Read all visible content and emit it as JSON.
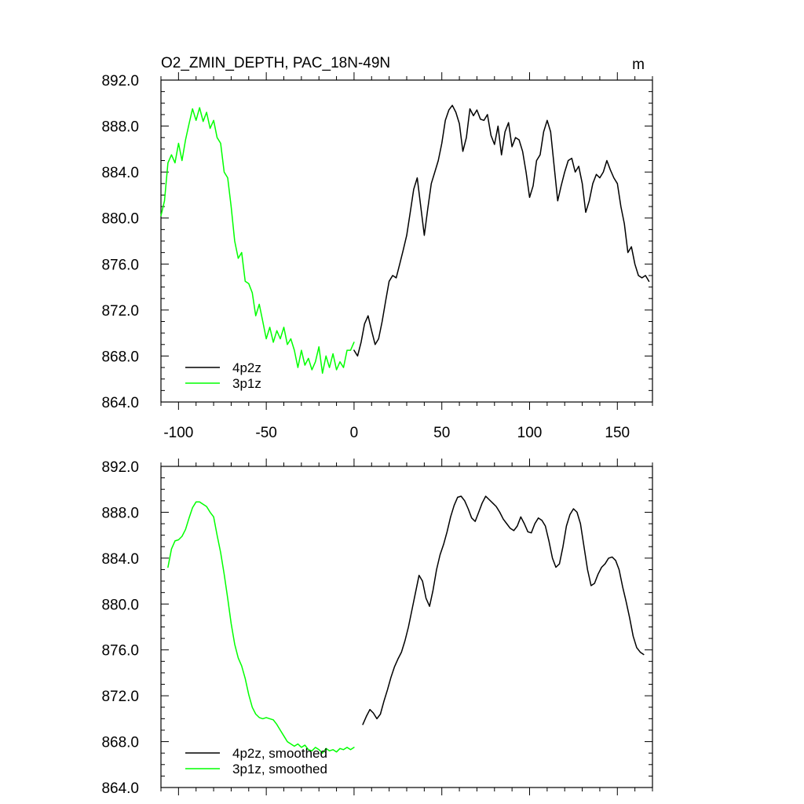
{
  "chart_data": [
    {
      "type": "line",
      "title": "O2_ZMIN_DEPTH, PAC_18N-49N",
      "units": "m",
      "xlim": [
        -110,
        170
      ],
      "ylim": [
        864,
        892
      ],
      "x_ticks": [
        -100,
        -50,
        0,
        50,
        100,
        150
      ],
      "x_tick_labels": [
        "-100",
        "-50",
        "0",
        "50",
        "100",
        "150"
      ],
      "y_ticks": [
        864,
        868,
        872,
        876,
        880,
        884,
        888,
        892
      ],
      "y_tick_labels": [
        "864.0",
        "868.0",
        "872.0",
        "876.0",
        "880.0",
        "884.0",
        "888.0",
        "892.0"
      ],
      "legend": "bottom-left",
      "series": [
        {
          "name": "4p2z",
          "color": "#000000",
          "x": [
            0,
            2,
            4,
            6,
            8,
            10,
            12,
            14,
            16,
            18,
            20,
            22,
            24,
            26,
            28,
            30,
            32,
            34,
            36,
            38,
            40,
            42,
            44,
            46,
            48,
            50,
            52,
            54,
            56,
            58,
            60,
            62,
            64,
            66,
            68,
            70,
            72,
            74,
            76,
            78,
            80,
            82,
            84,
            86,
            88,
            90,
            92,
            94,
            96,
            98,
            100,
            102,
            104,
            106,
            108,
            110,
            112,
            114,
            116,
            118,
            120,
            122,
            124,
            126,
            128,
            130,
            132,
            134,
            136,
            138,
            140,
            142,
            144,
            146,
            148,
            150,
            152,
            154,
            156,
            158,
            160,
            162,
            164,
            166,
            168
          ],
          "y": [
            868.5,
            868.0,
            869.2,
            870.8,
            871.5,
            870.2,
            869.0,
            869.5,
            871.0,
            872.8,
            874.5,
            875.0,
            874.8,
            876.0,
            877.2,
            878.5,
            880.5,
            882.5,
            883.5,
            881.0,
            878.5,
            880.8,
            883.0,
            884.0,
            885.0,
            886.5,
            888.5,
            889.4,
            889.8,
            889.2,
            888.2,
            885.8,
            887.0,
            889.5,
            888.9,
            889.4,
            888.6,
            888.5,
            889.0,
            887.2,
            886.4,
            888.0,
            885.5,
            887.5,
            888.3,
            886.2,
            887.0,
            886.8,
            885.8,
            884.0,
            881.8,
            882.8,
            885.0,
            885.5,
            887.5,
            888.5,
            887.5,
            884.5,
            881.5,
            882.8,
            884.0,
            885.0,
            885.2,
            884.0,
            884.5,
            883.0,
            880.5,
            881.5,
            883.0,
            883.8,
            883.5,
            884.0,
            885.0,
            884.2,
            883.5,
            883.0,
            881.0,
            879.5,
            877.0,
            877.5,
            876.0,
            875.0,
            874.8,
            875.0,
            874.5
          ]
        },
        {
          "name": "3p1z",
          "color": "#00ff00",
          "x": [
            -110,
            -108,
            -106,
            -104,
            -102,
            -100,
            -98,
            -96,
            -94,
            -92,
            -90,
            -88,
            -86,
            -84,
            -82,
            -80,
            -78,
            -76,
            -74,
            -72,
            -70,
            -68,
            -66,
            -64,
            -62,
            -60,
            -58,
            -56,
            -54,
            -52,
            -50,
            -48,
            -46,
            -44,
            -42,
            -40,
            -38,
            -36,
            -34,
            -32,
            -30,
            -28,
            -26,
            -24,
            -22,
            -20,
            -18,
            -16,
            -14,
            -12,
            -10,
            -8,
            -6,
            -4,
            -2,
            0
          ],
          "y": [
            880.2,
            881.5,
            884.8,
            885.5,
            884.8,
            886.5,
            885.0,
            886.8,
            888.2,
            889.5,
            888.5,
            889.6,
            888.4,
            889.2,
            887.8,
            888.5,
            887.0,
            886.5,
            884.0,
            883.5,
            881.0,
            878.0,
            876.5,
            877.0,
            874.5,
            874.3,
            873.5,
            871.5,
            872.5,
            871.0,
            869.5,
            870.5,
            869.2,
            870.2,
            869.5,
            870.5,
            869.0,
            869.5,
            868.5,
            867.0,
            868.5,
            867.2,
            867.8,
            866.8,
            867.5,
            868.8,
            866.5,
            868.0,
            867.0,
            868.2,
            866.8,
            867.5,
            867.0,
            868.5,
            868.5,
            869.2
          ]
        }
      ]
    },
    {
      "type": "line",
      "title": "",
      "xlim": [
        -110,
        170
      ],
      "ylim": [
        864,
        892
      ],
      "x_ticks": [
        -100,
        -50,
        0,
        50,
        100,
        150
      ],
      "y_ticks": [
        864,
        868,
        872,
        876,
        880,
        884,
        888,
        892
      ],
      "y_tick_labels": [
        "864.0",
        "868.0",
        "872.0",
        "876.0",
        "880.0",
        "884.0",
        "888.0",
        "892.0"
      ],
      "legend": "bottom-left",
      "series": [
        {
          "name": "4p2z, smoothed",
          "color": "#000000",
          "x": [
            5,
            7,
            9,
            11,
            13,
            15,
            17,
            19,
            21,
            23,
            25,
            27,
            29,
            31,
            33,
            35,
            37,
            39,
            41,
            43,
            45,
            47,
            49,
            51,
            53,
            55,
            57,
            59,
            61,
            63,
            65,
            67,
            69,
            71,
            73,
            75,
            77,
            79,
            81,
            83,
            85,
            87,
            89,
            91,
            93,
            95,
            97,
            99,
            101,
            103,
            105,
            107,
            109,
            111,
            113,
            115,
            117,
            119,
            121,
            123,
            125,
            127,
            129,
            131,
            133,
            135,
            137,
            139,
            141,
            143,
            145,
            147,
            149,
            151,
            153,
            155,
            157,
            159,
            161,
            163,
            165
          ],
          "y": [
            869.5,
            870.2,
            870.8,
            870.5,
            870.0,
            870.4,
            871.5,
            872.5,
            873.6,
            874.5,
            875.2,
            875.8,
            876.8,
            878.0,
            879.5,
            881.0,
            882.5,
            882.0,
            880.5,
            879.8,
            881.2,
            883.0,
            884.3,
            885.2,
            886.3,
            887.6,
            888.6,
            889.3,
            889.4,
            889.0,
            888.3,
            887.5,
            887.2,
            888.0,
            888.8,
            889.4,
            889.1,
            888.8,
            888.5,
            888.0,
            887.4,
            887.0,
            886.6,
            886.4,
            886.8,
            887.6,
            887.0,
            886.3,
            886.2,
            887.0,
            887.5,
            887.3,
            886.8,
            885.5,
            884.0,
            883.2,
            883.5,
            885.0,
            886.8,
            887.8,
            888.3,
            888.0,
            887.0,
            885.0,
            883.0,
            881.6,
            881.8,
            882.6,
            883.2,
            883.5,
            884.0,
            884.1,
            883.8,
            883.0,
            881.5,
            880.2,
            878.8,
            877.2,
            876.2,
            875.8,
            875.6
          ]
        },
        {
          "name": "3p1z, smoothed",
          "color": "#00ff00",
          "x": [
            -106,
            -104,
            -102,
            -100,
            -98,
            -96,
            -94,
            -92,
            -90,
            -88,
            -86,
            -84,
            -82,
            -80,
            -78,
            -76,
            -74,
            -72,
            -70,
            -68,
            -66,
            -64,
            -62,
            -60,
            -58,
            -56,
            -54,
            -52,
            -50,
            -48,
            -46,
            -44,
            -42,
            -40,
            -38,
            -36,
            -34,
            -32,
            -30,
            -28,
            -26,
            -24,
            -22,
            -20,
            -18,
            -16,
            -14,
            -12,
            -10,
            -8,
            -6,
            -4,
            -2,
            0
          ],
          "y": [
            883.2,
            884.8,
            885.5,
            885.6,
            885.9,
            886.5,
            887.5,
            888.4,
            888.9,
            888.9,
            888.7,
            888.5,
            888.0,
            887.6,
            886.0,
            884.5,
            882.6,
            880.5,
            878.3,
            876.5,
            875.3,
            874.6,
            873.5,
            872.1,
            871.0,
            870.4,
            870.1,
            870.0,
            870.1,
            870.0,
            869.9,
            869.5,
            869.0,
            868.5,
            868.0,
            867.8,
            867.6,
            867.8,
            867.5,
            867.7,
            867.3,
            867.2,
            867.5,
            867.3,
            867.0,
            867.4,
            867.2,
            867.3,
            867.1,
            867.4,
            867.3,
            867.5,
            867.3,
            867.5
          ]
        }
      ]
    }
  ]
}
